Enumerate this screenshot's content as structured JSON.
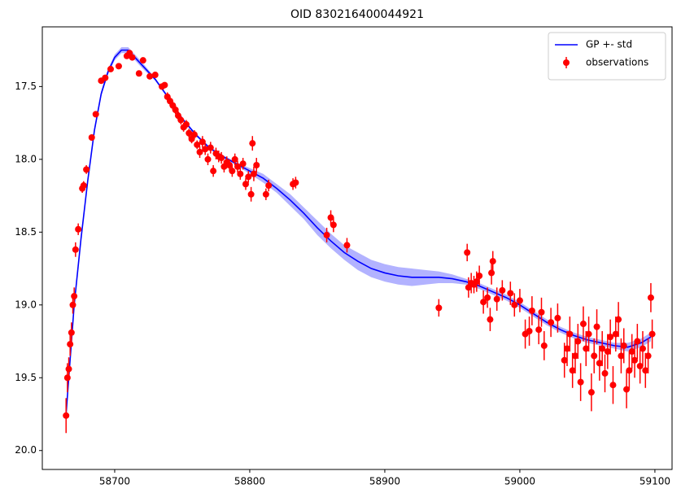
{
  "chart_data": {
    "type": "line",
    "title": "OID 830216400044921",
    "xlim": [
      58646.4,
      59112.7
    ],
    "ylim": [
      17.09,
      20.13
    ],
    "invert_y": true,
    "xticks": [
      58700,
      58800,
      58900,
      59000,
      59100
    ],
    "yticks": [
      17.5,
      {
        "value": 18,
        "label": "18.0"
      },
      18.5,
      {
        "value": 19,
        "label": "19.0"
      },
      19.5,
      {
        "value": 20,
        "label": "20.0"
      }
    ],
    "legend": "upper right",
    "series": [
      {
        "name": "GP +- std",
        "type": "line",
        "color": "#0000ff",
        "x": [
          58664,
          58670,
          58675,
          58680,
          58685,
          58690,
          58695,
          58700,
          58705,
          58710,
          58715,
          58720,
          58730,
          58740,
          58750,
          58760,
          58770,
          58780,
          58790,
          58800,
          58810,
          58820,
          58830,
          58840,
          58850,
          58860,
          58870,
          58880,
          58890,
          58900,
          58910,
          58920,
          58930,
          58940,
          58950,
          58960,
          58970,
          58980,
          58990,
          59000,
          59010,
          59020,
          59030,
          59040,
          59050,
          59060,
          59070,
          59080,
          59090,
          59097
        ],
        "values": [
          19.75,
          19.0,
          18.55,
          18.15,
          17.8,
          17.55,
          17.4,
          17.3,
          17.25,
          17.25,
          17.3,
          17.35,
          17.45,
          17.58,
          17.72,
          17.83,
          17.92,
          17.98,
          18.03,
          18.08,
          18.13,
          18.2,
          18.28,
          18.37,
          18.47,
          18.56,
          18.64,
          18.7,
          18.75,
          18.78,
          18.8,
          18.81,
          18.81,
          18.81,
          18.82,
          18.84,
          18.87,
          18.91,
          18.95,
          19.0,
          19.06,
          19.12,
          19.17,
          19.21,
          19.24,
          19.26,
          19.28,
          19.29,
          19.26,
          19.22
        ],
        "std": [
          0.02,
          0.02,
          0.02,
          0.02,
          0.02,
          0.02,
          0.02,
          0.02,
          0.02,
          0.02,
          0.02,
          0.02,
          0.01,
          0.01,
          0.01,
          0.01,
          0.01,
          0.01,
          0.01,
          0.02,
          0.03,
          0.03,
          0.04,
          0.04,
          0.05,
          0.05,
          0.05,
          0.06,
          0.06,
          0.06,
          0.06,
          0.06,
          0.05,
          0.04,
          0.03,
          0.02,
          0.02,
          0.02,
          0.02,
          0.02,
          0.02,
          0.02,
          0.02,
          0.02,
          0.02,
          0.02,
          0.02,
          0.03,
          0.03,
          0.03
        ]
      },
      {
        "name": "observations",
        "type": "errorbar",
        "color": "#ff0000",
        "x": [
          58664,
          58665,
          58666,
          58667,
          58668,
          58669,
          58670,
          58671,
          58673,
          58676,
          58677,
          58679,
          58683,
          58686,
          58690,
          58693,
          58697,
          58703,
          58709,
          58711,
          58713,
          58718,
          58721,
          58726,
          58730,
          58735,
          58737,
          58739,
          58741,
          58743,
          58745,
          58747,
          58749,
          58751,
          58753,
          58755,
          58757,
          58759,
          58761,
          58763,
          58765,
          58767,
          58769,
          58771,
          58773,
          58775,
          58777,
          58779,
          58781,
          58783,
          58785,
          58787,
          58789,
          58791,
          58793,
          58795,
          58797,
          58799,
          58801,
          58802,
          58803,
          58805,
          58812,
          58814,
          58832,
          58834,
          58857,
          58860,
          58862,
          58872,
          58940,
          58961,
          58962,
          58964,
          58966,
          58968,
          58970,
          58973,
          58976,
          58978,
          58979,
          58980,
          58983,
          58987,
          58993,
          58996,
          59000,
          59004,
          59007,
          59009,
          59014,
          59016,
          59018,
          59023,
          59028,
          59033,
          59035,
          59037,
          59039,
          59041,
          59043,
          59045,
          59047,
          59049,
          59051,
          59053,
          59055,
          59057,
          59059,
          59061,
          59063,
          59065,
          59067,
          59069,
          59071,
          59073,
          59075,
          59077,
          59079,
          59081,
          59083,
          59085,
          59087,
          59089,
          59091,
          59093,
          59095,
          59097,
          59098
        ],
        "values": [
          19.76,
          19.5,
          19.44,
          19.27,
          19.19,
          19.0,
          18.94,
          18.62,
          18.48,
          18.2,
          18.18,
          18.07,
          17.85,
          17.69,
          17.46,
          17.44,
          17.38,
          17.36,
          17.29,
          17.27,
          17.3,
          17.41,
          17.32,
          17.43,
          17.42,
          17.5,
          17.49,
          17.57,
          17.6,
          17.63,
          17.66,
          17.7,
          17.73,
          17.78,
          17.76,
          17.82,
          17.86,
          17.83,
          17.9,
          17.95,
          17.88,
          17.93,
          18.0,
          17.92,
          18.08,
          17.96,
          17.98,
          17.99,
          18.05,
          18.02,
          18.04,
          18.08,
          18.0,
          18.05,
          18.1,
          18.03,
          18.17,
          18.12,
          18.24,
          17.89,
          18.1,
          18.04,
          18.24,
          18.18,
          18.17,
          18.16,
          18.52,
          18.4,
          18.45,
          18.59,
          19.02,
          18.64,
          18.88,
          18.85,
          18.86,
          18.84,
          18.8,
          18.98,
          18.95,
          19.1,
          18.78,
          18.7,
          18.96,
          18.9,
          18.92,
          19.0,
          18.97,
          19.2,
          19.18,
          19.04,
          19.17,
          19.05,
          19.28,
          19.12,
          19.09,
          19.38,
          19.3,
          19.2,
          19.45,
          19.35,
          19.25,
          19.53,
          19.13,
          19.3,
          19.2,
          19.6,
          19.35,
          19.15,
          19.4,
          19.3,
          19.47,
          19.32,
          19.22,
          19.55,
          19.2,
          19.1,
          19.35,
          19.28,
          19.58,
          19.45,
          19.32,
          19.38,
          19.25,
          19.42,
          19.3,
          19.45,
          19.35,
          18.95,
          19.2
        ],
        "errors": [
          0.12,
          0.1,
          0.08,
          0.08,
          0.07,
          0.06,
          0.06,
          0.05,
          0.04,
          0.03,
          0.03,
          0.03,
          0.02,
          0.02,
          0.02,
          0.02,
          0.02,
          0.02,
          0.02,
          0.02,
          0.02,
          0.02,
          0.02,
          0.02,
          0.02,
          0.02,
          0.02,
          0.03,
          0.03,
          0.03,
          0.03,
          0.03,
          0.03,
          0.03,
          0.03,
          0.03,
          0.03,
          0.03,
          0.03,
          0.04,
          0.04,
          0.04,
          0.04,
          0.04,
          0.04,
          0.04,
          0.04,
          0.04,
          0.04,
          0.04,
          0.04,
          0.04,
          0.04,
          0.04,
          0.04,
          0.04,
          0.04,
          0.04,
          0.05,
          0.05,
          0.05,
          0.05,
          0.04,
          0.04,
          0.04,
          0.04,
          0.05,
          0.05,
          0.05,
          0.05,
          0.06,
          0.06,
          0.07,
          0.07,
          0.06,
          0.07,
          0.07,
          0.08,
          0.07,
          0.08,
          0.08,
          0.07,
          0.08,
          0.07,
          0.08,
          0.08,
          0.08,
          0.1,
          0.1,
          0.1,
          0.1,
          0.1,
          0.1,
          0.1,
          0.1,
          0.12,
          0.12,
          0.12,
          0.12,
          0.12,
          0.12,
          0.13,
          0.12,
          0.12,
          0.12,
          0.13,
          0.12,
          0.12,
          0.12,
          0.12,
          0.13,
          0.12,
          0.12,
          0.13,
          0.12,
          0.12,
          0.12,
          0.12,
          0.13,
          0.13,
          0.12,
          0.12,
          0.12,
          0.12,
          0.12,
          0.12,
          0.12,
          0.1,
          0.1
        ]
      }
    ]
  }
}
